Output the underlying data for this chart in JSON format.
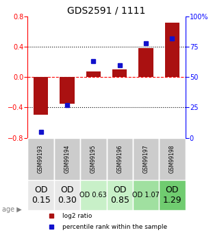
{
  "title": "GDS2591 / 1111",
  "samples": [
    "GSM99193",
    "GSM99194",
    "GSM99195",
    "GSM99196",
    "GSM99197",
    "GSM99198"
  ],
  "log2_ratio": [
    -0.5,
    -0.35,
    0.08,
    0.1,
    0.38,
    0.72
  ],
  "percentile_rank": [
    5,
    27,
    63,
    60,
    78,
    82
  ],
  "bar_color": "#aa1111",
  "dot_color": "#1111cc",
  "ylim_left": [
    -0.8,
    0.8
  ],
  "ylim_right": [
    0,
    100
  ],
  "yticks_left": [
    -0.8,
    -0.4,
    0,
    0.4,
    0.8
  ],
  "yticks_right": [
    0,
    25,
    50,
    75,
    100
  ],
  "ytick_labels_right": [
    "0",
    "25",
    "50",
    "75",
    "100%"
  ],
  "hline_y": [
    0.4,
    0,
    -0.4
  ],
  "hline_styles": [
    "dotted",
    "dashed",
    "dotted"
  ],
  "hline_colors": [
    "black",
    "red",
    "black"
  ],
  "age_labels": [
    "OD\n0.15",
    "OD\n0.30",
    "OD 0.63",
    "OD\n0.85",
    "OD 1.07",
    "OD\n1.29"
  ],
  "age_bg_colors": [
    "#e8e8e8",
    "#e8e8e8",
    "#c8f0c8",
    "#c8f0c8",
    "#a0e0a0",
    "#70cc70"
  ],
  "age_fontsize": [
    9,
    9,
    7,
    9,
    7,
    9
  ],
  "sample_bg_color": "#cccccc",
  "legend_labels": [
    "log2 ratio",
    "percentile rank within the sample"
  ],
  "legend_colors": [
    "#aa1111",
    "#1111cc"
  ]
}
